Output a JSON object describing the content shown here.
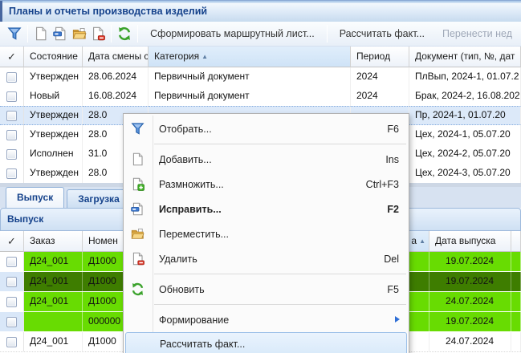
{
  "window": {
    "title": "Планы и отчеты производства изделий"
  },
  "toolbar": {
    "items": [
      {
        "type": "icon",
        "icon": "filter-icon",
        "name": "filter-button"
      },
      {
        "type": "sep"
      },
      {
        "type": "icon",
        "icon": "add-doc-icon",
        "name": "add-button"
      },
      {
        "type": "icon",
        "icon": "edit-doc-icon",
        "name": "edit-button"
      },
      {
        "type": "icon",
        "icon": "move-folder-icon",
        "name": "move-button"
      },
      {
        "type": "icon",
        "icon": "delete-doc-icon",
        "name": "delete-button"
      },
      {
        "type": "sep"
      },
      {
        "type": "icon",
        "icon": "refresh-icon",
        "name": "refresh-button"
      },
      {
        "type": "sep"
      },
      {
        "type": "text",
        "label": "Сформировать маршрутный лист...",
        "enabled": true,
        "name": "generate-route-sheet-button"
      },
      {
        "type": "sep"
      },
      {
        "type": "text",
        "label": "Рассчитать факт...",
        "enabled": true,
        "name": "calculate-fact-button"
      },
      {
        "type": "text",
        "label": "Перенести нед",
        "enabled": false,
        "name": "transfer-week-button"
      }
    ]
  },
  "plans_grid": {
    "columns": [
      {
        "label": "✓",
        "type": "check"
      },
      {
        "label": "Состояние"
      },
      {
        "label": "Дата смены сост"
      },
      {
        "label": "Категория",
        "sorted": true
      },
      {
        "label": "Период"
      },
      {
        "label": "Документ (тип, №, дат"
      }
    ],
    "rows": [
      {
        "cells": [
          "",
          "Утвержден",
          "28.06.2024",
          "Первичный документ",
          "2024",
          "ПлВып, 2024-1, 01.07.2"
        ]
      },
      {
        "cells": [
          "",
          "Новый",
          "16.08.2024",
          "Первичный документ",
          "2024",
          "Брак, 2024-2, 16.08.202"
        ]
      },
      {
        "cells": [
          "",
          "Утвержден",
          "28.0",
          "",
          "",
          "Пр, 2024-1, 01.07.20"
        ],
        "selected": true
      },
      {
        "cells": [
          "",
          "Утвержден",
          "28.0",
          "",
          "",
          "Цех, 2024-1, 05.07.20"
        ]
      },
      {
        "cells": [
          "",
          "Исполнен",
          "31.0",
          "",
          "",
          "Цех, 2024-2, 05.07.20"
        ]
      },
      {
        "cells": [
          "",
          "Утвержден",
          "28.0",
          "",
          "",
          "Цех, 2024-3, 05.07.20"
        ]
      }
    ]
  },
  "tabs": [
    {
      "label": "Выпуск",
      "active": true,
      "name": "tab-vypusk"
    },
    {
      "label": "Загрузка",
      "active": false,
      "name": "tab-zagruzka"
    }
  ],
  "output_panel": {
    "title": "Выпуск"
  },
  "output_grid": {
    "columns": [
      {
        "label": "✓",
        "type": "check"
      },
      {
        "label": "Заказ"
      },
      {
        "label": "Номен"
      },
      {
        "label": "а",
        "sorted": true,
        "align": "right"
      },
      {
        "label": "Дата выпуска"
      },
      {
        "label": ""
      }
    ],
    "rows": [
      {
        "cells": [
          "",
          "Д24_001",
          "Д1000",
          "",
          "19.07.2024",
          ""
        ],
        "highlight": "green"
      },
      {
        "cells": [
          "",
          "Д24_001",
          "Д1000",
          "",
          "19.07.2024",
          ""
        ],
        "highlight": "dark",
        "checkbox_cell": "blue"
      },
      {
        "cells": [
          "",
          "Д24_001",
          "Д1000",
          "",
          "24.07.2024",
          ""
        ],
        "highlight": "green"
      },
      {
        "cells": [
          "",
          "",
          "000000",
          "",
          "19.07.2024",
          ""
        ],
        "highlight": "green",
        "checkbox_cell": "blue"
      },
      {
        "cells": [
          "",
          "Д24_001",
          "Д1000",
          "",
          "24.07.2024",
          ""
        ],
        "highlight": "white"
      }
    ]
  },
  "context_menu": {
    "items": [
      {
        "label": "Отобрать...",
        "shortcut": "F6",
        "icon": "filter-icon",
        "name": "menu-item-filter"
      },
      {
        "type": "sep"
      },
      {
        "label": "Добавить...",
        "shortcut": "Ins",
        "icon": "add-doc-icon",
        "name": "menu-item-add"
      },
      {
        "label": "Размножить...",
        "shortcut": "Ctrl+F3",
        "icon": "copy-doc-icon",
        "name": "menu-item-duplicate"
      },
      {
        "label": "Исправить...",
        "shortcut": "F2",
        "icon": "edit-doc-icon",
        "bold": true,
        "name": "menu-item-edit"
      },
      {
        "label": "Переместить...",
        "shortcut": "",
        "icon": "move-folder-icon",
        "name": "menu-item-move"
      },
      {
        "label": "Удалить",
        "shortcut": "Del",
        "icon": "delete-doc-icon",
        "name": "menu-item-delete"
      },
      {
        "type": "sep"
      },
      {
        "label": "Обновить",
        "shortcut": "F5",
        "icon": "refresh-icon",
        "name": "menu-item-refresh"
      },
      {
        "type": "sep"
      },
      {
        "label": "Формирование",
        "submenu": true,
        "name": "menu-item-forming"
      },
      {
        "label": "Рассчитать факт...",
        "hover": true,
        "name": "menu-item-calculate-fact"
      }
    ]
  },
  "colors": {
    "row_green": "#68dc02",
    "row_green_selected": "#3e7d00",
    "selection_blue": "#dce9f9",
    "accent_text": "#15428b"
  }
}
